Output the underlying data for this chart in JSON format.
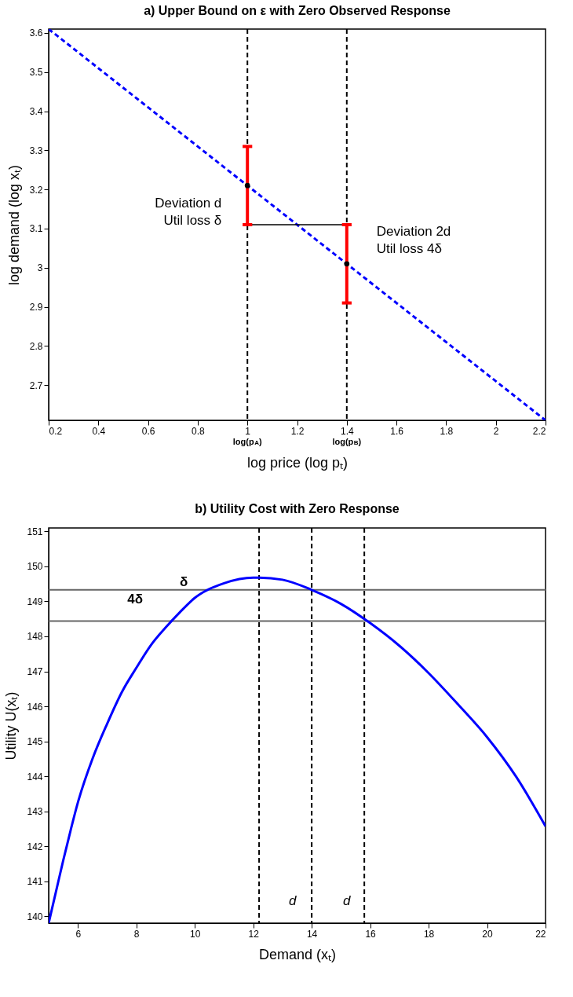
{
  "chart_data": [
    {
      "type": "line",
      "title": "a) Upper Bound on ε with Zero Observed Response",
      "xlabel": "log price (log pₜ)",
      "ylabel": "log demand (log xₜ)",
      "xlim": [
        0.2,
        2.2
      ],
      "ylim": [
        2.61,
        3.61
      ],
      "xticks": [
        0.2,
        0.4,
        0.6,
        0.8,
        1,
        1.2,
        1.4,
        1.6,
        1.8,
        2,
        2.2
      ],
      "yticks": [
        2.7,
        2.8,
        2.9,
        3,
        3.1,
        3.2,
        3.3,
        3.4,
        3.5,
        3.6
      ],
      "grid": false,
      "series": [
        {
          "type": "line",
          "color": "#0000ff",
          "line_style": "dashed",
          "x": [
            0.2,
            2.2
          ],
          "values": [
            3.61,
            2.61
          ]
        },
        {
          "type": "line",
          "color": "#000000",
          "line_style": "solid",
          "x": [
            1,
            1.4
          ],
          "values": [
            3.11,
            3.11
          ]
        },
        {
          "type": "scatter",
          "color": "#ff0000",
          "colors": [
            "#000000",
            "#000000"
          ],
          "marker": "circle",
          "x": [
            1,
            1.4
          ],
          "values": [
            3.21,
            3.01
          ],
          "errors": [
            0.1,
            0.1
          ]
        }
      ],
      "ref_lines": [
        {
          "axis": "x",
          "value": 1,
          "label": "log(p$_{A}$)",
          "color": "#000000",
          "line_style": "dashed"
        },
        {
          "axis": "x",
          "value": 1.4,
          "label": "log(p$_{B}$)",
          "color": "#000000",
          "line_style": "dashed"
        }
      ],
      "annotations": [
        "Deviation d\nUtil loss δ",
        "Deviation 2d\nUtil loss 4δ"
      ]
    },
    {
      "type": "line",
      "title": "b) Utility Cost with Zero Response",
      "xlabel": "Demand (xₜ)",
      "ylabel": "Utility U(xₜ)",
      "xlim": [
        5,
        22
      ],
      "ylim": [
        139.8,
        151.1
      ],
      "xticks": [
        6,
        8,
        10,
        12,
        14,
        16,
        18,
        20,
        22
      ],
      "yticks": [
        140,
        141,
        142,
        143,
        144,
        145,
        146,
        147,
        148,
        149,
        150,
        151
      ],
      "grid": false,
      "series": [
        {
          "type": "line",
          "color": "#0000ff",
          "line_style": "solid",
          "x": [
            5,
            5.25,
            5.5,
            5.75,
            6,
            6.5,
            7,
            7.5,
            8,
            8.5,
            9,
            9.5,
            10,
            11,
            12,
            12.2,
            13,
            14,
            15,
            16,
            17,
            18,
            19,
            20,
            21,
            22
          ],
          "values": [
            139.8,
            140.7,
            141.6,
            142.45,
            143.25,
            144.5,
            145.5,
            146.4,
            147.1,
            147.75,
            148.25,
            148.7,
            149.1,
            149.52,
            149.68,
            149.68,
            149.62,
            149.33,
            148.93,
            148.38,
            147.73,
            146.95,
            146.06,
            145.12,
            143.98,
            142.57
          ]
        }
      ],
      "ref_lines": [
        {
          "axis": "x",
          "value": 12.2,
          "color": "#000000",
          "line_style": "dashed"
        },
        {
          "axis": "x",
          "value": 14,
          "color": "#000000",
          "line_style": "dashed"
        },
        {
          "axis": "x",
          "value": 15.8,
          "color": "#000000",
          "line_style": "dashed"
        },
        {
          "axis": "y",
          "value": 149.33,
          "color": "#666666",
          "line_style": "solid"
        },
        {
          "axis": "y",
          "value": 148.44,
          "color": "#666666",
          "line_style": "solid"
        }
      ],
      "annotations": [
        "δ",
        "4δ",
        "d",
        "d"
      ]
    }
  ]
}
